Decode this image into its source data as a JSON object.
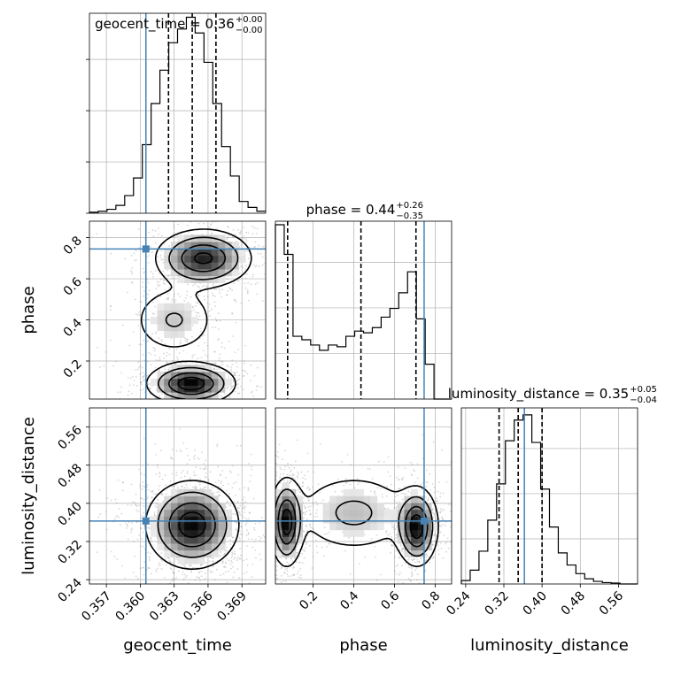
{
  "chart_data": {
    "type": "corner",
    "parameters": [
      "geocent_time",
      "phase",
      "luminosity_distance"
    ],
    "axis_labels": {
      "geocent_time": "geocent_time",
      "phase": "phase",
      "luminosity_distance": "luminosity_distance"
    },
    "ranges": {
      "geocent_time": [
        0.3555,
        0.3711
      ],
      "phase": [
        0.015,
        0.88
      ],
      "luminosity_distance": [
        0.231,
        0.6
      ]
    },
    "ticks": {
      "geocent_time": [
        "0.357",
        "0.360",
        "0.363",
        "0.366",
        "0.369"
      ],
      "phase": [
        "0.2",
        "0.4",
        "0.6",
        "0.8"
      ],
      "luminosity_distance": [
        "0.24",
        "0.32",
        "0.40",
        "0.48",
        "0.56"
      ]
    },
    "truths": {
      "geocent_time": 0.3605,
      "phase": 0.745,
      "luminosity_distance": 0.363
    },
    "titles": {
      "geocent_time": {
        "label": "geocent_time = 0.36",
        "plus": "+0.00",
        "minus": "−0.00"
      },
      "phase": {
        "label": "phase = 0.44",
        "plus": "+0.26",
        "minus": "−0.35"
      },
      "luminosity_distance": {
        "label": "luminosity_distance = 0.35",
        "plus": "+0.05",
        "minus": "−0.04"
      }
    },
    "quantiles": {
      "geocent_time": [
        0.3625,
        0.3646,
        0.3667
      ],
      "phase": [
        0.075,
        0.435,
        0.705
      ],
      "luminosity_distance": [
        0.31,
        0.35,
        0.4
      ]
    },
    "histograms": {
      "geocent_time": {
        "edges_start": 0.3555,
        "edges_step": 0.00078,
        "values": [
          0.005,
          0.01,
          0.02,
          0.04,
          0.09,
          0.18,
          0.35,
          0.56,
          0.73,
          0.87,
          0.94,
          1.0,
          0.92,
          0.77,
          0.56,
          0.34,
          0.19,
          0.06,
          0.03,
          0.01
        ]
      },
      "phase": {
        "edges_start": 0.015,
        "edges_step": 0.04325,
        "values": [
          1.0,
          0.83,
          0.36,
          0.34,
          0.31,
          0.28,
          0.31,
          0.3,
          0.36,
          0.39,
          0.38,
          0.41,
          0.47,
          0.52,
          0.61,
          0.73,
          0.46,
          0.2,
          0.0,
          0.0
        ]
      },
      "luminosity_distance": {
        "edges_start": 0.231,
        "edges_step": 0.01845,
        "values": [
          0.02,
          0.08,
          0.19,
          0.37,
          0.58,
          0.83,
          0.95,
          0.98,
          0.82,
          0.55,
          0.33,
          0.18,
          0.11,
          0.06,
          0.03,
          0.015,
          0.008,
          0.005,
          0.0,
          0.0
        ]
      }
    },
    "samples_2d_modes": {
      "phase_vs_geocent_time": [
        {
          "x": 0.3645,
          "y": 0.09,
          "sx": 0.0019,
          "sy": 0.05,
          "w": 0.45
        },
        {
          "x": 0.3656,
          "y": 0.7,
          "sx": 0.0021,
          "sy": 0.07,
          "w": 0.4
        },
        {
          "x": 0.363,
          "y": 0.4,
          "sx": 0.002,
          "sy": 0.09,
          "w": 0.15
        }
      ],
      "luminosity_distance_vs_geocent_time": [
        {
          "x": 0.3646,
          "y": 0.355,
          "sx": 0.002,
          "sy": 0.045,
          "w": 1.0
        }
      ],
      "luminosity_distance_vs_phase": [
        {
          "x": 0.07,
          "y": 0.36,
          "sx": 0.04,
          "sy": 0.045,
          "w": 0.42
        },
        {
          "x": 0.71,
          "y": 0.35,
          "sx": 0.05,
          "sy": 0.04,
          "w": 0.42
        },
        {
          "x": 0.4,
          "y": 0.38,
          "sx": 0.16,
          "sy": 0.045,
          "w": 0.16
        }
      ]
    },
    "colors": {
      "truth": "#4682b4",
      "hist": "#000000",
      "samples": "#8c8c8c",
      "grid": "#b0b0b0"
    },
    "grid": true
  }
}
